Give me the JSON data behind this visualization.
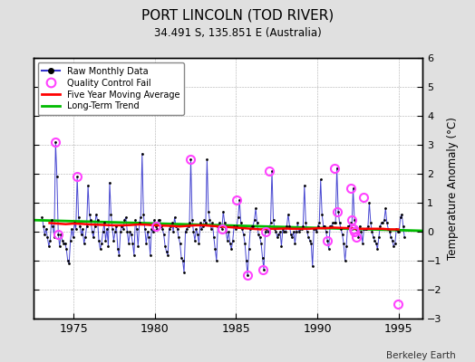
{
  "title": "PORT LINCOLN (TOD RIVER)",
  "subtitle": "34.491 S, 135.851 E (Australia)",
  "ylabel": "Temperature Anomaly (°C)",
  "credit": "Berkeley Earth",
  "ylim": [
    -3,
    6
  ],
  "yticks": [
    -3,
    -2,
    -1,
    0,
    1,
    2,
    3,
    4,
    5,
    6
  ],
  "xlim": [
    1972.5,
    1996.5
  ],
  "xticks": [
    1975,
    1980,
    1985,
    1990,
    1995
  ],
  "bg_color": "#e0e0e0",
  "plot_bg_color": "#ffffff",
  "raw_color": "#3333cc",
  "raw_dot_color": "#000000",
  "qc_color": "#ff44ff",
  "ma_color": "#ff0000",
  "trend_color": "#00bb00",
  "raw_data_x": [
    1973.042,
    1973.125,
    1973.208,
    1973.292,
    1973.375,
    1973.458,
    1973.542,
    1973.625,
    1973.708,
    1973.792,
    1973.875,
    1973.958,
    1974.042,
    1974.125,
    1974.208,
    1974.292,
    1974.375,
    1974.458,
    1974.542,
    1974.625,
    1974.708,
    1974.792,
    1974.875,
    1974.958,
    1975.042,
    1975.125,
    1975.208,
    1975.292,
    1975.375,
    1975.458,
    1975.542,
    1975.625,
    1975.708,
    1975.792,
    1975.875,
    1975.958,
    1976.042,
    1976.125,
    1976.208,
    1976.292,
    1976.375,
    1976.458,
    1976.542,
    1976.625,
    1976.708,
    1976.792,
    1976.875,
    1976.958,
    1977.042,
    1977.125,
    1977.208,
    1977.292,
    1977.375,
    1977.458,
    1977.542,
    1977.625,
    1977.708,
    1977.792,
    1977.875,
    1977.958,
    1978.042,
    1978.125,
    1978.208,
    1978.292,
    1978.375,
    1978.458,
    1978.542,
    1978.625,
    1978.708,
    1978.792,
    1978.875,
    1978.958,
    1979.042,
    1979.125,
    1979.208,
    1979.292,
    1979.375,
    1979.458,
    1979.542,
    1979.625,
    1979.708,
    1979.792,
    1979.875,
    1979.958,
    1980.042,
    1980.125,
    1980.208,
    1980.292,
    1980.375,
    1980.458,
    1980.542,
    1980.625,
    1980.708,
    1980.792,
    1980.875,
    1980.958,
    1981.042,
    1981.125,
    1981.208,
    1981.292,
    1981.375,
    1981.458,
    1981.542,
    1981.625,
    1981.708,
    1981.792,
    1981.875,
    1981.958,
    1982.042,
    1982.125,
    1982.208,
    1982.292,
    1982.375,
    1982.458,
    1982.542,
    1982.625,
    1982.708,
    1982.792,
    1982.875,
    1982.958,
    1983.042,
    1983.125,
    1983.208,
    1983.292,
    1983.375,
    1983.458,
    1983.542,
    1983.625,
    1983.708,
    1983.792,
    1983.875,
    1983.958,
    1984.042,
    1984.125,
    1984.208,
    1984.292,
    1984.375,
    1984.458,
    1984.542,
    1984.625,
    1984.708,
    1984.792,
    1984.875,
    1984.958,
    1985.042,
    1985.125,
    1985.208,
    1985.292,
    1985.375,
    1985.458,
    1985.542,
    1985.625,
    1985.708,
    1985.792,
    1985.875,
    1985.958,
    1986.042,
    1986.125,
    1986.208,
    1986.292,
    1986.375,
    1986.458,
    1986.542,
    1986.625,
    1986.708,
    1986.792,
    1986.875,
    1986.958,
    1987.042,
    1987.125,
    1987.208,
    1987.292,
    1987.375,
    1987.458,
    1987.542,
    1987.625,
    1987.708,
    1987.792,
    1987.875,
    1987.958,
    1988.042,
    1988.125,
    1988.208,
    1988.292,
    1988.375,
    1988.458,
    1988.542,
    1988.625,
    1988.708,
    1988.792,
    1988.875,
    1988.958,
    1989.042,
    1989.125,
    1989.208,
    1989.292,
    1989.375,
    1989.458,
    1989.542,
    1989.625,
    1989.708,
    1989.792,
    1989.875,
    1989.958,
    1990.042,
    1990.125,
    1990.208,
    1990.292,
    1990.375,
    1990.458,
    1990.542,
    1990.625,
    1990.708,
    1990.792,
    1990.875,
    1990.958,
    1991.042,
    1991.125,
    1991.208,
    1991.292,
    1991.375,
    1991.458,
    1991.542,
    1991.625,
    1991.708,
    1991.792,
    1991.875,
    1991.958,
    1992.042,
    1992.125,
    1992.208,
    1992.292,
    1992.375,
    1992.458,
    1992.542,
    1992.625,
    1992.708,
    1992.792,
    1992.875,
    1992.958,
    1993.042,
    1993.125,
    1993.208,
    1993.292,
    1993.375,
    1993.458,
    1993.542,
    1993.625,
    1993.708,
    1993.792,
    1993.875,
    1993.958,
    1994.042,
    1994.125,
    1994.208,
    1994.292,
    1994.375,
    1994.458,
    1994.542,
    1994.625,
    1994.708,
    1994.792,
    1994.875,
    1994.958,
    1995.042,
    1995.125,
    1995.208,
    1995.292,
    1995.375
  ],
  "raw_data_y": [
    0.5,
    0.2,
    -0.1,
    0.1,
    -0.2,
    -0.5,
    -0.3,
    0.4,
    0.2,
    -0.2,
    3.1,
    1.9,
    -0.1,
    -0.5,
    -0.1,
    -0.3,
    -0.4,
    -0.4,
    -0.6,
    -1.0,
    -1.1,
    -0.3,
    0.1,
    -0.2,
    0.3,
    0.1,
    1.9,
    0.5,
    0.2,
    -0.1,
    0.1,
    -0.4,
    -0.2,
    0.2,
    1.6,
    0.6,
    0.4,
    0.0,
    -0.2,
    0.2,
    0.6,
    0.4,
    -0.3,
    -0.6,
    -0.4,
    0.0,
    0.3,
    -0.3,
    0.1,
    -0.5,
    1.7,
    0.6,
    0.1,
    -0.3,
    0.0,
    0.2,
    -0.6,
    -0.8,
    0.0,
    0.2,
    0.1,
    0.4,
    0.5,
    0.0,
    -0.4,
    0.0,
    -0.1,
    -0.4,
    -0.8,
    0.4,
    0.1,
    -0.5,
    0.3,
    0.5,
    2.7,
    0.6,
    0.1,
    -0.4,
    0.0,
    -0.2,
    -0.8,
    0.1,
    0.0,
    0.4,
    0.2,
    0.1,
    0.4,
    0.4,
    0.2,
    0.1,
    -0.1,
    -0.5,
    -0.7,
    -0.8,
    0.1,
    0.2,
    0.3,
    0.0,
    0.5,
    0.2,
    0.1,
    -0.2,
    -0.4,
    -0.9,
    -1.0,
    -1.4,
    0.0,
    0.1,
    0.2,
    0.3,
    2.5,
    0.4,
    0.0,
    -0.3,
    0.1,
    -0.1,
    -0.4,
    0.3,
    0.1,
    0.2,
    0.4,
    0.3,
    2.5,
    0.7,
    0.4,
    0.1,
    0.3,
    -0.2,
    -0.6,
    -1.0,
    0.2,
    0.3,
    0.2,
    0.1,
    0.7,
    0.3,
    0.0,
    -0.3,
    0.0,
    -0.4,
    -0.6,
    -0.3,
    0.2,
    0.1,
    0.2,
    0.5,
    1.1,
    0.3,
    0.1,
    -0.1,
    -0.4,
    -1.0,
    -1.5,
    -0.6,
    0.1,
    0.2,
    0.2,
    0.4,
    0.8,
    0.3,
    -0.1,
    -0.2,
    -0.4,
    -0.9,
    -1.3,
    0.0,
    0.1,
    0.0,
    0.1,
    0.3,
    2.1,
    0.4,
    0.1,
    0.0,
    -0.2,
    -0.1,
    0.0,
    -0.5,
    0.1,
    0.0,
    0.0,
    0.2,
    0.6,
    0.2,
    -0.1,
    -0.2,
    0.0,
    -0.4,
    0.0,
    0.3,
    0.0,
    0.1,
    0.1,
    0.2,
    1.6,
    0.3,
    0.0,
    -0.2,
    -0.3,
    -0.4,
    -1.2,
    0.1,
    0.1,
    0.0,
    0.2,
    0.3,
    1.8,
    0.6,
    0.2,
    0.2,
    0.0,
    -0.3,
    -0.6,
    0.2,
    0.2,
    0.3,
    0.3,
    0.3,
    2.2,
    0.7,
    0.3,
    0.1,
    -0.1,
    -0.4,
    -1.0,
    -0.5,
    0.2,
    0.2,
    0.3,
    0.1,
    1.5,
    0.4,
    0.1,
    0.0,
    -0.2,
    0.2,
    0.0,
    -0.4,
    0.1,
    0.1,
    0.1,
    0.2,
    1.0,
    0.3,
    0.0,
    -0.2,
    -0.3,
    -0.4,
    -0.6,
    -0.2,
    0.2,
    0.3,
    0.3,
    0.4,
    0.8,
    0.3,
    0.1,
    0.0,
    -0.2,
    -0.3,
    -0.5,
    -0.4,
    0.1,
    0.0,
    0.0,
    0.5,
    0.6,
    0.2,
    -0.2
  ],
  "qc_fail_x": [
    1973.875,
    1974.042,
    1975.208,
    1980.042,
    1982.208,
    1984.125,
    1985.042,
    1985.708,
    1986.625,
    1986.792,
    1987.042,
    1990.625,
    1991.042,
    1991.208,
    1992.042,
    1992.125,
    1992.208,
    1992.292,
    1992.375,
    1992.875,
    1994.958
  ],
  "qc_fail_y": [
    3.1,
    -0.1,
    1.9,
    0.2,
    2.5,
    0.1,
    1.1,
    -1.5,
    -1.3,
    0.0,
    2.1,
    -0.3,
    2.2,
    0.7,
    1.5,
    0.4,
    0.1,
    0.0,
    -0.2,
    1.2,
    -2.5
  ],
  "ma_x": [
    1973.5,
    1974.0,
    1974.5,
    1975.0,
    1975.5,
    1976.0,
    1976.5,
    1977.0,
    1977.5,
    1978.0,
    1978.5,
    1979.0,
    1979.5,
    1980.0,
    1980.5,
    1981.0,
    1981.5,
    1982.0,
    1982.5,
    1983.0,
    1983.5,
    1984.0,
    1984.5,
    1985.0,
    1985.5,
    1986.0,
    1986.5,
    1987.0,
    1987.5,
    1988.0,
    1988.5,
    1989.0,
    1989.5,
    1990.0,
    1990.5,
    1991.0,
    1991.5,
    1992.0,
    1992.5,
    1993.0,
    1993.5,
    1994.0,
    1994.5,
    1995.0
  ],
  "ma_y": [
    0.3,
    0.28,
    0.26,
    0.28,
    0.27,
    0.25,
    0.24,
    0.23,
    0.22,
    0.22,
    0.23,
    0.25,
    0.24,
    0.22,
    0.21,
    0.2,
    0.18,
    0.2,
    0.22,
    0.22,
    0.2,
    0.18,
    0.16,
    0.14,
    0.12,
    0.1,
    0.08,
    0.1,
    0.1,
    0.11,
    0.1,
    0.1,
    0.1,
    0.12,
    0.12,
    0.14,
    0.13,
    0.12,
    0.1,
    0.1,
    0.1,
    0.1,
    0.08,
    0.08
  ],
  "trend_x": [
    1972.5,
    1996.5
  ],
  "trend_y": [
    0.4,
    0.03
  ]
}
